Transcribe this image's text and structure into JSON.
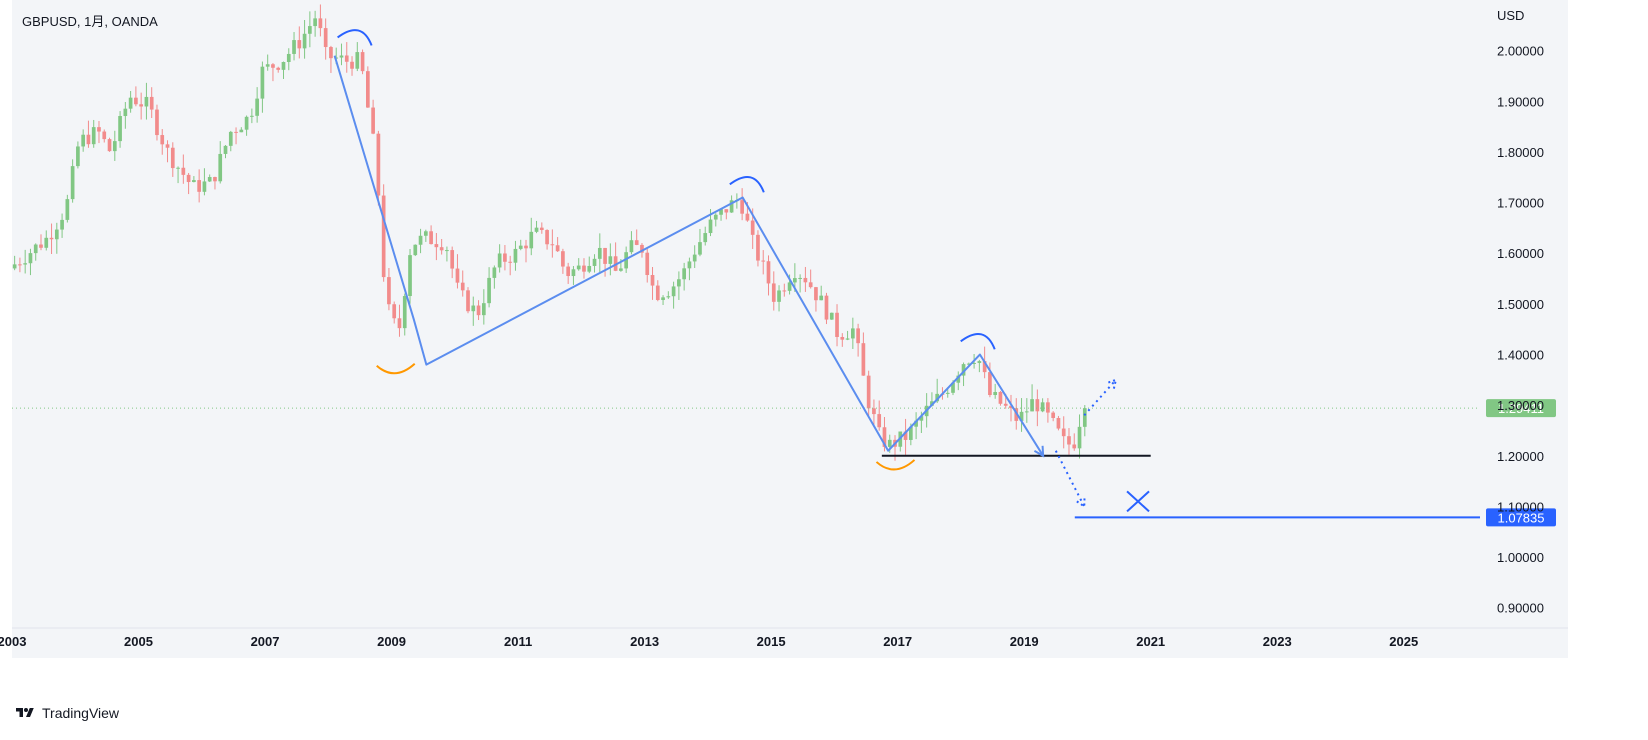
{
  "symbol_legend": "GBPUSD, 1月, OANDA",
  "footer_brand": "TradingView",
  "chart_data": {
    "type": "candlestick",
    "title": "GBPUSD, 1月, OANDA",
    "currency_label": "USD",
    "ylim": [
      0.86,
      2.1
    ],
    "xlim": [
      2003.0,
      2026.0
    ],
    "y_ticks": [
      "0.90000",
      "1.00000",
      "1.10000",
      "1.20000",
      "1.30000",
      "1.40000",
      "1.50000",
      "1.60000",
      "1.70000",
      "1.80000",
      "1.90000",
      "2.00000"
    ],
    "y_tick_values": [
      0.9,
      1.0,
      1.1,
      1.2,
      1.3,
      1.4,
      1.5,
      1.6,
      1.7,
      1.8,
      1.9,
      2.0
    ],
    "x_ticks": [
      "2003",
      "2005",
      "2007",
      "2009",
      "2011",
      "2013",
      "2015",
      "2017",
      "2019",
      "2021",
      "2023",
      "2025"
    ],
    "x_tick_values": [
      2003,
      2005,
      2007,
      2009,
      2011,
      2013,
      2015,
      2017,
      2019,
      2021,
      2023,
      2025
    ],
    "last_price": {
      "label": "1.29411",
      "value": 1.29411,
      "color": "#81c784"
    },
    "target_level": {
      "label": "1.07835",
      "value": 1.07835,
      "color": "#2962ff"
    },
    "support_level": 1.2,
    "up_color": "#81c784",
    "down_color": "#f28b8b",
    "price_path": [
      [
        2003.0,
        1.57
      ],
      [
        2003.3,
        1.6
      ],
      [
        2003.6,
        1.63
      ],
      [
        2003.9,
        1.69
      ],
      [
        2004.1,
        1.82
      ],
      [
        2004.4,
        1.84
      ],
      [
        2004.6,
        1.8
      ],
      [
        2004.9,
        1.91
      ],
      [
        2005.2,
        1.89
      ],
      [
        2005.5,
        1.8
      ],
      [
        2005.9,
        1.73
      ],
      [
        2006.2,
        1.74
      ],
      [
        2006.5,
        1.84
      ],
      [
        2006.8,
        1.87
      ],
      [
        2007.0,
        1.96
      ],
      [
        2007.3,
        1.98
      ],
      [
        2007.6,
        2.02
      ],
      [
        2007.85,
        2.07
      ],
      [
        2008.0,
        1.99
      ],
      [
        2008.3,
        1.98
      ],
      [
        2008.55,
        1.98
      ],
      [
        2008.8,
        1.78
      ],
      [
        2008.95,
        1.5
      ],
      [
        2009.15,
        1.44
      ],
      [
        2009.35,
        1.62
      ],
      [
        2009.6,
        1.63
      ],
      [
        2009.9,
        1.62
      ],
      [
        2010.1,
        1.52
      ],
      [
        2010.4,
        1.48
      ],
      [
        2010.7,
        1.58
      ],
      [
        2011.0,
        1.6
      ],
      [
        2011.3,
        1.64
      ],
      [
        2011.6,
        1.62
      ],
      [
        2011.8,
        1.56
      ],
      [
        2012.0,
        1.57
      ],
      [
        2012.3,
        1.61
      ],
      [
        2012.6,
        1.56
      ],
      [
        2012.8,
        1.61
      ],
      [
        2013.0,
        1.61
      ],
      [
        2013.2,
        1.52
      ],
      [
        2013.45,
        1.53
      ],
      [
        2013.65,
        1.56
      ],
      [
        2013.85,
        1.61
      ],
      [
        2014.1,
        1.66
      ],
      [
        2014.35,
        1.69
      ],
      [
        2014.55,
        1.71
      ],
      [
        2014.75,
        1.62
      ],
      [
        2014.95,
        1.56
      ],
      [
        2015.1,
        1.51
      ],
      [
        2015.4,
        1.57
      ],
      [
        2015.6,
        1.55
      ],
      [
        2015.9,
        1.49
      ],
      [
        2016.1,
        1.44
      ],
      [
        2016.35,
        1.45
      ],
      [
        2016.55,
        1.32
      ],
      [
        2016.75,
        1.24
      ],
      [
        2016.9,
        1.22
      ],
      [
        2017.2,
        1.24
      ],
      [
        2017.5,
        1.29
      ],
      [
        2017.8,
        1.33
      ],
      [
        2018.1,
        1.39
      ],
      [
        2018.3,
        1.4
      ],
      [
        2018.5,
        1.32
      ],
      [
        2018.7,
        1.3
      ],
      [
        2018.95,
        1.27
      ],
      [
        2019.2,
        1.31
      ],
      [
        2019.45,
        1.27
      ],
      [
        2019.7,
        1.22
      ],
      [
        2019.85,
        1.23
      ],
      [
        2019.95,
        1.29
      ]
    ],
    "annotations": [
      {
        "kind": "trend-line",
        "color": "#5b8def",
        "points": [
          [
            2008.1,
            1.99
          ],
          [
            2009.35,
            1.47
          ],
          [
            2009.55,
            1.38
          ],
          [
            2014.55,
            1.71
          ],
          [
            2016.85,
            1.21
          ],
          [
            2018.3,
            1.4
          ],
          [
            2019.3,
            1.2
          ]
        ]
      },
      {
        "kind": "cap-arc",
        "color": "#2962ff",
        "at": [
          2008.4,
          2.03
        ]
      },
      {
        "kind": "cap-arc",
        "color": "#2962ff",
        "at": [
          2014.6,
          1.74
        ]
      },
      {
        "kind": "cap-arc",
        "color": "#2962ff",
        "at": [
          2018.25,
          1.43
        ]
      },
      {
        "kind": "cup-arc",
        "color": "#ff9800",
        "at": [
          2009.05,
          1.37
        ]
      },
      {
        "kind": "cup-arc",
        "color": "#ff9800",
        "at": [
          2016.95,
          1.18
        ]
      },
      {
        "kind": "dotted-arrow-up",
        "color": "#2962ff",
        "points": [
          [
            2019.95,
            1.28
          ],
          [
            2020.45,
            1.35
          ]
        ]
      },
      {
        "kind": "dotted-arrow-down",
        "color": "#2962ff",
        "points": [
          [
            2019.5,
            1.21
          ],
          [
            2019.95,
            1.1
          ]
        ]
      },
      {
        "kind": "cross-mark",
        "color": "#2962ff",
        "at": [
          2020.8,
          1.11
        ]
      }
    ]
  }
}
